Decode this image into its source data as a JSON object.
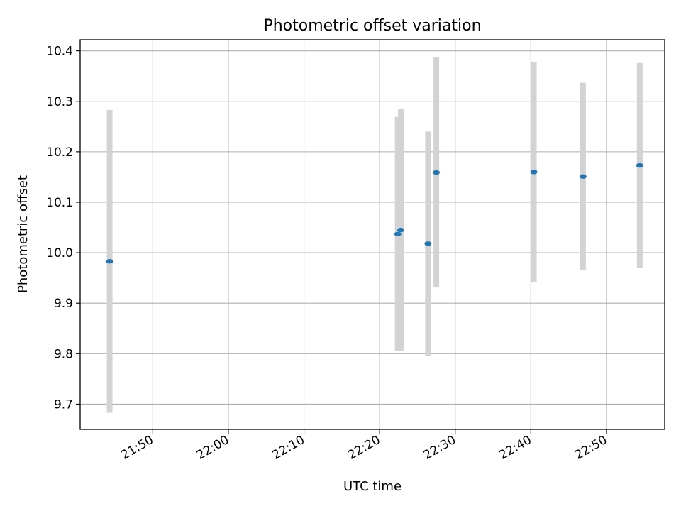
{
  "chart_data": {
    "type": "scatter",
    "title": "Photometric offset variation",
    "xlabel": "UTC time",
    "ylabel": "Photometric offset",
    "x_ticks": [
      "21:50",
      "22:00",
      "22:10",
      "22:20",
      "22:30",
      "22:40",
      "22:50"
    ],
    "y_ticks": [
      "9.7",
      "9.8",
      "9.9",
      "10.0",
      "10.1",
      "10.2",
      "10.3",
      "10.4"
    ],
    "xlim": [
      "21:40.4",
      "22:57.7"
    ],
    "ylim": [
      9.65,
      10.422
    ],
    "grid": true,
    "colors": {
      "point": "#1f77b4",
      "errorbar": "#d3d3d3",
      "grid": "#b0b0b0"
    },
    "series": [
      {
        "points": [
          {
            "x": "21:44.3",
            "y": 9.983,
            "err": 0.3
          },
          {
            "x": "22:22.4",
            "y": 10.037,
            "err": 0.232
          },
          {
            "x": "22:22.8",
            "y": 10.045,
            "err": 0.24
          },
          {
            "x": "22:26.4",
            "y": 10.018,
            "err": 0.222
          },
          {
            "x": "22:27.5",
            "y": 10.159,
            "err": 0.228
          },
          {
            "x": "22:40.4",
            "y": 10.16,
            "err": 0.218
          },
          {
            "x": "22:46.9",
            "y": 10.151,
            "err": 0.186
          },
          {
            "x": "22:54.4",
            "y": 10.173,
            "err": 0.203
          }
        ]
      }
    ]
  }
}
